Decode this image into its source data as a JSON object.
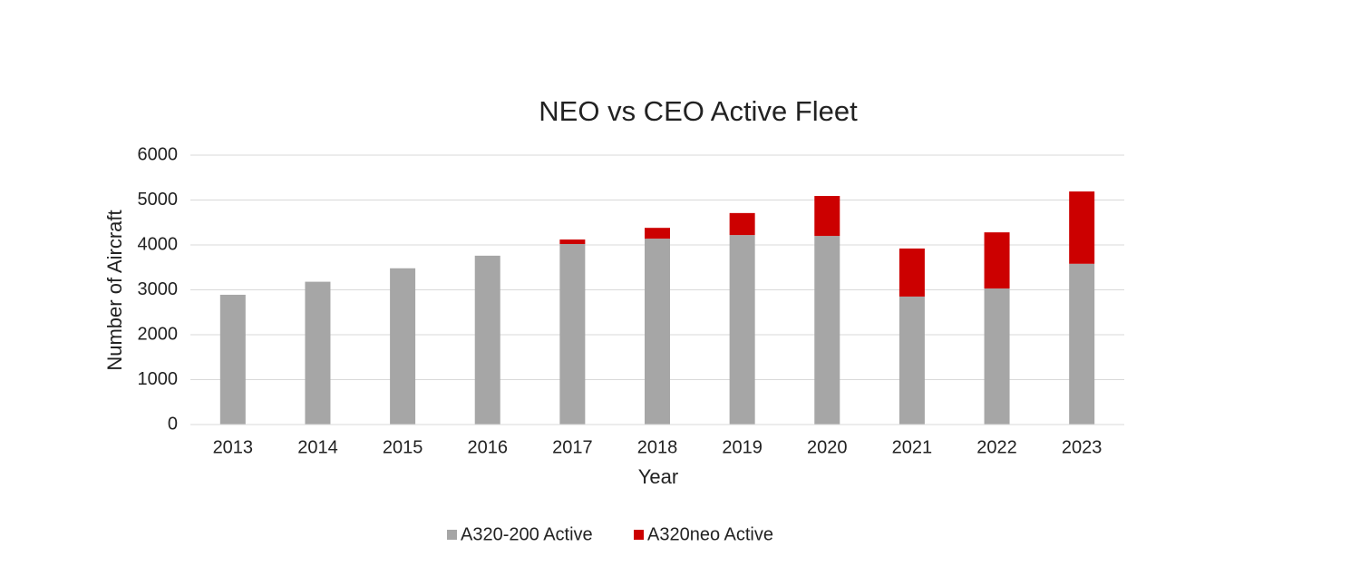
{
  "chart_data": {
    "type": "stacked-bar",
    "title": "NEO vs CEO Active Fleet",
    "x_label": "Year",
    "y_label": "Number of Aircraft",
    "categories": [
      "2013",
      "2014",
      "2015",
      "2016",
      "2017",
      "2018",
      "2019",
      "2020",
      "2021",
      "2022",
      "2023"
    ],
    "series": [
      {
        "name": "A320-200 Active",
        "color": "#a6a6a6",
        "values": [
          2890,
          3180,
          3480,
          3760,
          4020,
          4140,
          4220,
          4200,
          2850,
          3030,
          3580
        ]
      },
      {
        "name": "A320neo Active",
        "color": "#cc0000",
        "values": [
          0,
          0,
          0,
          0,
          100,
          240,
          490,
          890,
          1070,
          1250,
          1610
        ]
      }
    ],
    "ylim": [
      0,
      6000
    ],
    "yticks": [
      0,
      1000,
      2000,
      3000,
      4000,
      5000,
      6000
    ],
    "grid": true,
    "legend": "bottom"
  }
}
